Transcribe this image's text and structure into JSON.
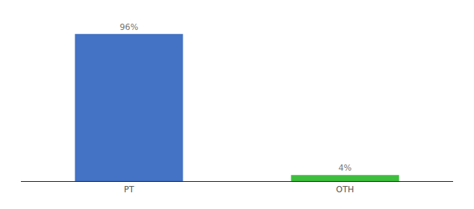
{
  "chart_data": {
    "type": "bar",
    "categories": [
      "PT",
      "OTH"
    ],
    "values": [
      96,
      4
    ],
    "value_labels": [
      "96%",
      "4%"
    ],
    "colors": [
      "#4472c4",
      "#3dbf3d"
    ],
    "ylim": [
      0,
      100
    ],
    "data_labels": true,
    "tick_labels": "x",
    "grid": false
  }
}
